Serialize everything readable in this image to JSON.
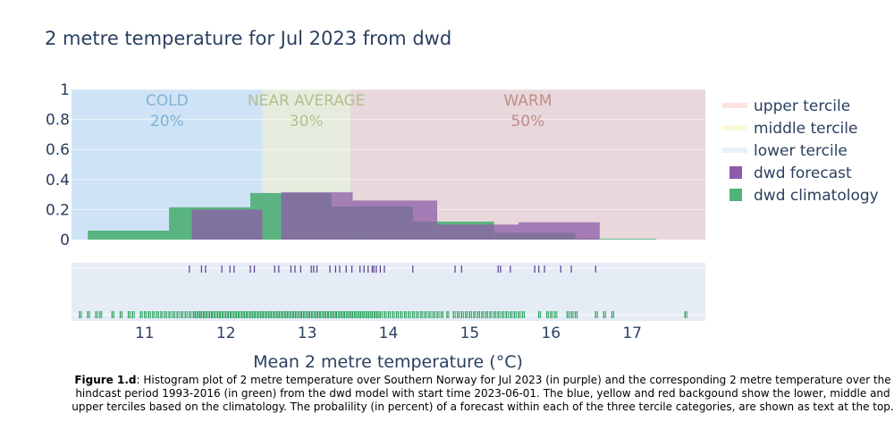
{
  "chart_data": {
    "type": "histogram",
    "title": "2 metre temperature for Jul 2023 from dwd",
    "xlabel": "Mean 2 metre temperature (°C)",
    "ylabel": "",
    "xlim": [
      10.1,
      17.9
    ],
    "ylim": [
      0,
      1
    ],
    "x_ticks": [
      11,
      12,
      13,
      14,
      15,
      16,
      17
    ],
    "y_ticks": [
      0,
      0.2,
      0.4,
      0.6,
      0.8,
      1
    ],
    "y_tick_labels": [
      "0",
      "0.2",
      "0.4",
      "0.6",
      "0.8",
      "1"
    ],
    "grid": true,
    "legend_position": "right",
    "terciles": [
      {
        "name": "lower tercile",
        "label": "COLD",
        "percent": "20%",
        "x0": 10.1,
        "x1": 12.45,
        "color": "#cfe3f6",
        "text_color": "#7fb2d4",
        "legend_color": "#e5f1fb"
      },
      {
        "name": "middle tercile",
        "label": "NEAR AVERAGE",
        "percent": "30%",
        "x0": 12.45,
        "x1": 13.53,
        "color": "#e6ecdd",
        "text_color": "#b3bf8e",
        "legend_color": "#fbf8dd"
      },
      {
        "name": "upper tercile",
        "label": "WARM",
        "percent": "50%",
        "x0": 13.53,
        "x1": 17.9,
        "color": "#e8d7db",
        "text_color": "#c08e88",
        "legend_color": "#fde3df"
      }
    ],
    "series": [
      {
        "name": "dwd climatology",
        "color": "#53b17b",
        "bins": [
          {
            "x0": 10.3,
            "x1": 11.3,
            "y": 0.06
          },
          {
            "x0": 11.3,
            "x1": 12.3,
            "y": 0.215
          },
          {
            "x0": 12.3,
            "x1": 13.3,
            "y": 0.31
          },
          {
            "x0": 13.3,
            "x1": 14.3,
            "y": 0.22
          },
          {
            "x0": 14.3,
            "x1": 15.3,
            "y": 0.12
          },
          {
            "x0": 15.3,
            "x1": 16.3,
            "y": 0.045
          },
          {
            "x0": 16.3,
            "x1": 17.3,
            "y": 0.005
          }
        ],
        "rug": [
          10.2,
          10.3,
          10.4,
          10.45,
          10.6,
          10.7,
          10.8,
          10.85,
          10.95,
          11.0,
          11.05,
          11.1,
          11.15,
          11.2,
          11.25,
          11.3,
          11.35,
          11.4,
          11.45,
          11.5,
          11.55,
          11.6,
          11.62,
          11.65,
          11.68,
          11.7,
          11.73,
          11.76,
          11.8,
          11.83,
          11.86,
          11.9,
          11.93,
          11.96,
          12.0,
          12.03,
          12.06,
          12.1,
          12.13,
          12.16,
          12.2,
          12.23,
          12.26,
          12.3,
          12.33,
          12.36,
          12.4,
          12.43,
          12.46,
          12.5,
          12.53,
          12.56,
          12.6,
          12.63,
          12.66,
          12.7,
          12.73,
          12.76,
          12.8,
          12.83,
          12.86,
          12.9,
          12.93,
          12.96,
          13.0,
          13.03,
          13.06,
          13.1,
          13.13,
          13.16,
          13.2,
          13.23,
          13.26,
          13.3,
          13.33,
          13.36,
          13.4,
          13.43,
          13.46,
          13.5,
          13.53,
          13.56,
          13.6,
          13.63,
          13.66,
          13.7,
          13.73,
          13.76,
          13.8,
          13.83,
          13.86,
          13.9,
          13.95,
          14.0,
          14.05,
          14.1,
          14.15,
          14.2,
          14.25,
          14.3,
          14.35,
          14.4,
          14.45,
          14.5,
          14.55,
          14.6,
          14.65,
          14.72,
          14.8,
          14.85,
          14.9,
          14.95,
          15.0,
          15.05,
          15.1,
          15.15,
          15.2,
          15.25,
          15.3,
          15.35,
          15.4,
          15.45,
          15.5,
          15.55,
          15.6,
          15.65,
          15.85,
          15.95,
          16.0,
          16.05,
          16.2,
          16.25,
          16.3,
          16.55,
          16.65,
          16.75,
          17.65
        ],
        "rug_color": "#2ca25f"
      },
      {
        "name": "dwd forecast",
        "color": "#8d5ca8",
        "bins": [
          {
            "x0": 11.58,
            "x1": 12.45,
            "y": 0.2
          },
          {
            "x0": 12.68,
            "x1": 13.3,
            "y": 0.315
          },
          {
            "x0": 13.3,
            "x1": 13.56,
            "y": 0.315
          },
          {
            "x0": 13.56,
            "x1": 14.6,
            "y": 0.26
          },
          {
            "x0": 14.6,
            "x1": 15.3,
            "y": 0.1
          },
          {
            "x0": 15.3,
            "x1": 15.6,
            "y": 0.1
          },
          {
            "x0": 15.6,
            "x1": 16.6,
            "y": 0.115
          }
        ],
        "rug": [
          11.55,
          11.7,
          11.75,
          11.95,
          12.05,
          12.1,
          12.3,
          12.35,
          12.6,
          12.65,
          12.8,
          12.85,
          12.92,
          13.05,
          13.08,
          13.12,
          13.28,
          13.35,
          13.4,
          13.48,
          13.55,
          13.65,
          13.7,
          13.75,
          13.8,
          13.82,
          13.85,
          13.9,
          13.95,
          14.3,
          14.82,
          14.9,
          15.35,
          15.38,
          15.5,
          15.8,
          15.85,
          15.92,
          16.12,
          16.25,
          16.55
        ],
        "rug_color": "#5b3a8c"
      }
    ],
    "legend": [
      {
        "name": "upper tercile",
        "color": "#fde3df",
        "kind": "line"
      },
      {
        "name": "middle tercile",
        "color": "#fbf8dd",
        "kind": "line"
      },
      {
        "name": "lower tercile",
        "color": "#e5f1fb",
        "kind": "line"
      },
      {
        "name": "dwd forecast",
        "color": "#8d5ca8",
        "kind": "square"
      },
      {
        "name": "dwd climatology",
        "color": "#53b17b",
        "kind": "square"
      }
    ]
  },
  "caption": {
    "label": "Figure 1.d",
    "text": ": Histogram plot of 2 metre temperature over Southern Norway for Jul 2023 (in purple) and the corresponding 2 metre temperature over the hindcast period 1993-2016 (in green) from the dwd model with start time 2023-06-01. The blue, yellow and red backgound show the lower, middle and upper terciles based on the climatology. The probalility (in percent) of a forecast within each of the three tercile categories, are shown as text at the top."
  }
}
